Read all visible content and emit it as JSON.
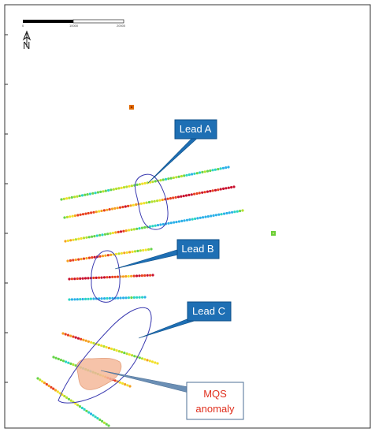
{
  "map": {
    "scale_bar": {
      "ticks": [
        "0",
        "10000",
        "20000"
      ]
    },
    "north_arrow": {
      "label": "N"
    },
    "callouts": {
      "lead_a": "Lead A",
      "lead_b": "Lead B",
      "lead_c": "Lead C",
      "mqs_line1": "MQS",
      "mqs_line2": "anomaly"
    },
    "colors": {
      "frame": "#000000",
      "outline": "#3a3ab0",
      "callout_fill": "#1e6fb4",
      "anomaly_fill": "#f4b89a",
      "mqs_text": "#e0301e"
    }
  }
}
